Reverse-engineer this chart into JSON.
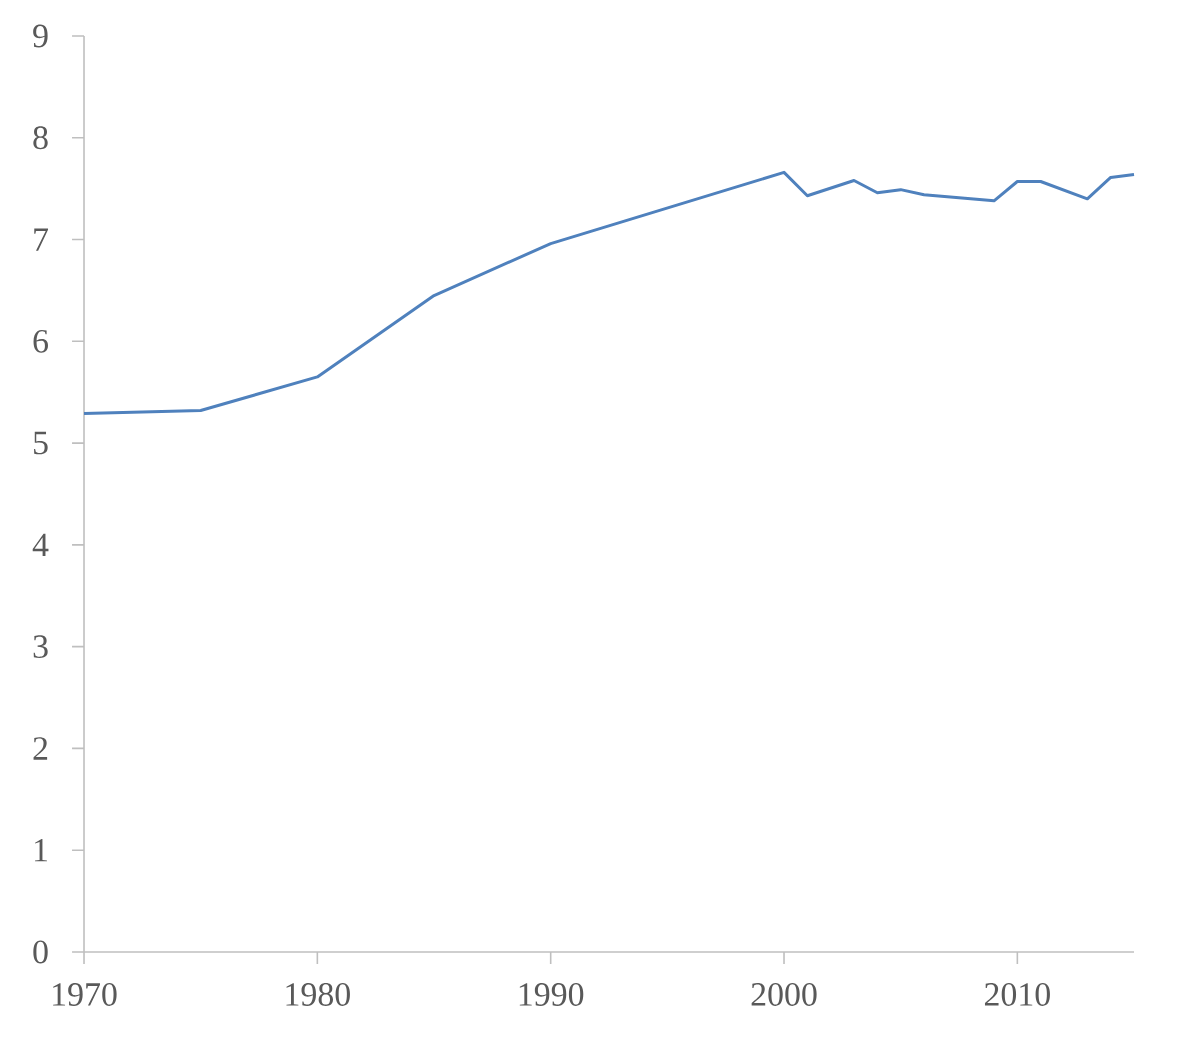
{
  "chart_data": {
    "type": "line",
    "x": [
      1970,
      1975,
      1980,
      1985,
      1990,
      2000,
      2001,
      2003,
      2004,
      2005,
      2006,
      2009,
      2010,
      2011,
      2013,
      2014,
      2015
    ],
    "values": [
      5.29,
      5.32,
      5.65,
      6.45,
      6.96,
      7.66,
      7.43,
      7.58,
      7.46,
      7.49,
      7.44,
      7.38,
      7.57,
      7.57,
      7.4,
      7.61,
      7.64
    ],
    "color": "#4f81bd",
    "marker": "none",
    "line_style": "solid",
    "xlim": [
      1970,
      2015
    ],
    "ylim": [
      0,
      9
    ],
    "xticks": [
      1970,
      1980,
      1990,
      2000,
      2010
    ],
    "yticks": [
      0,
      1,
      2,
      3,
      4,
      5,
      6,
      7,
      8,
      9
    ]
  }
}
